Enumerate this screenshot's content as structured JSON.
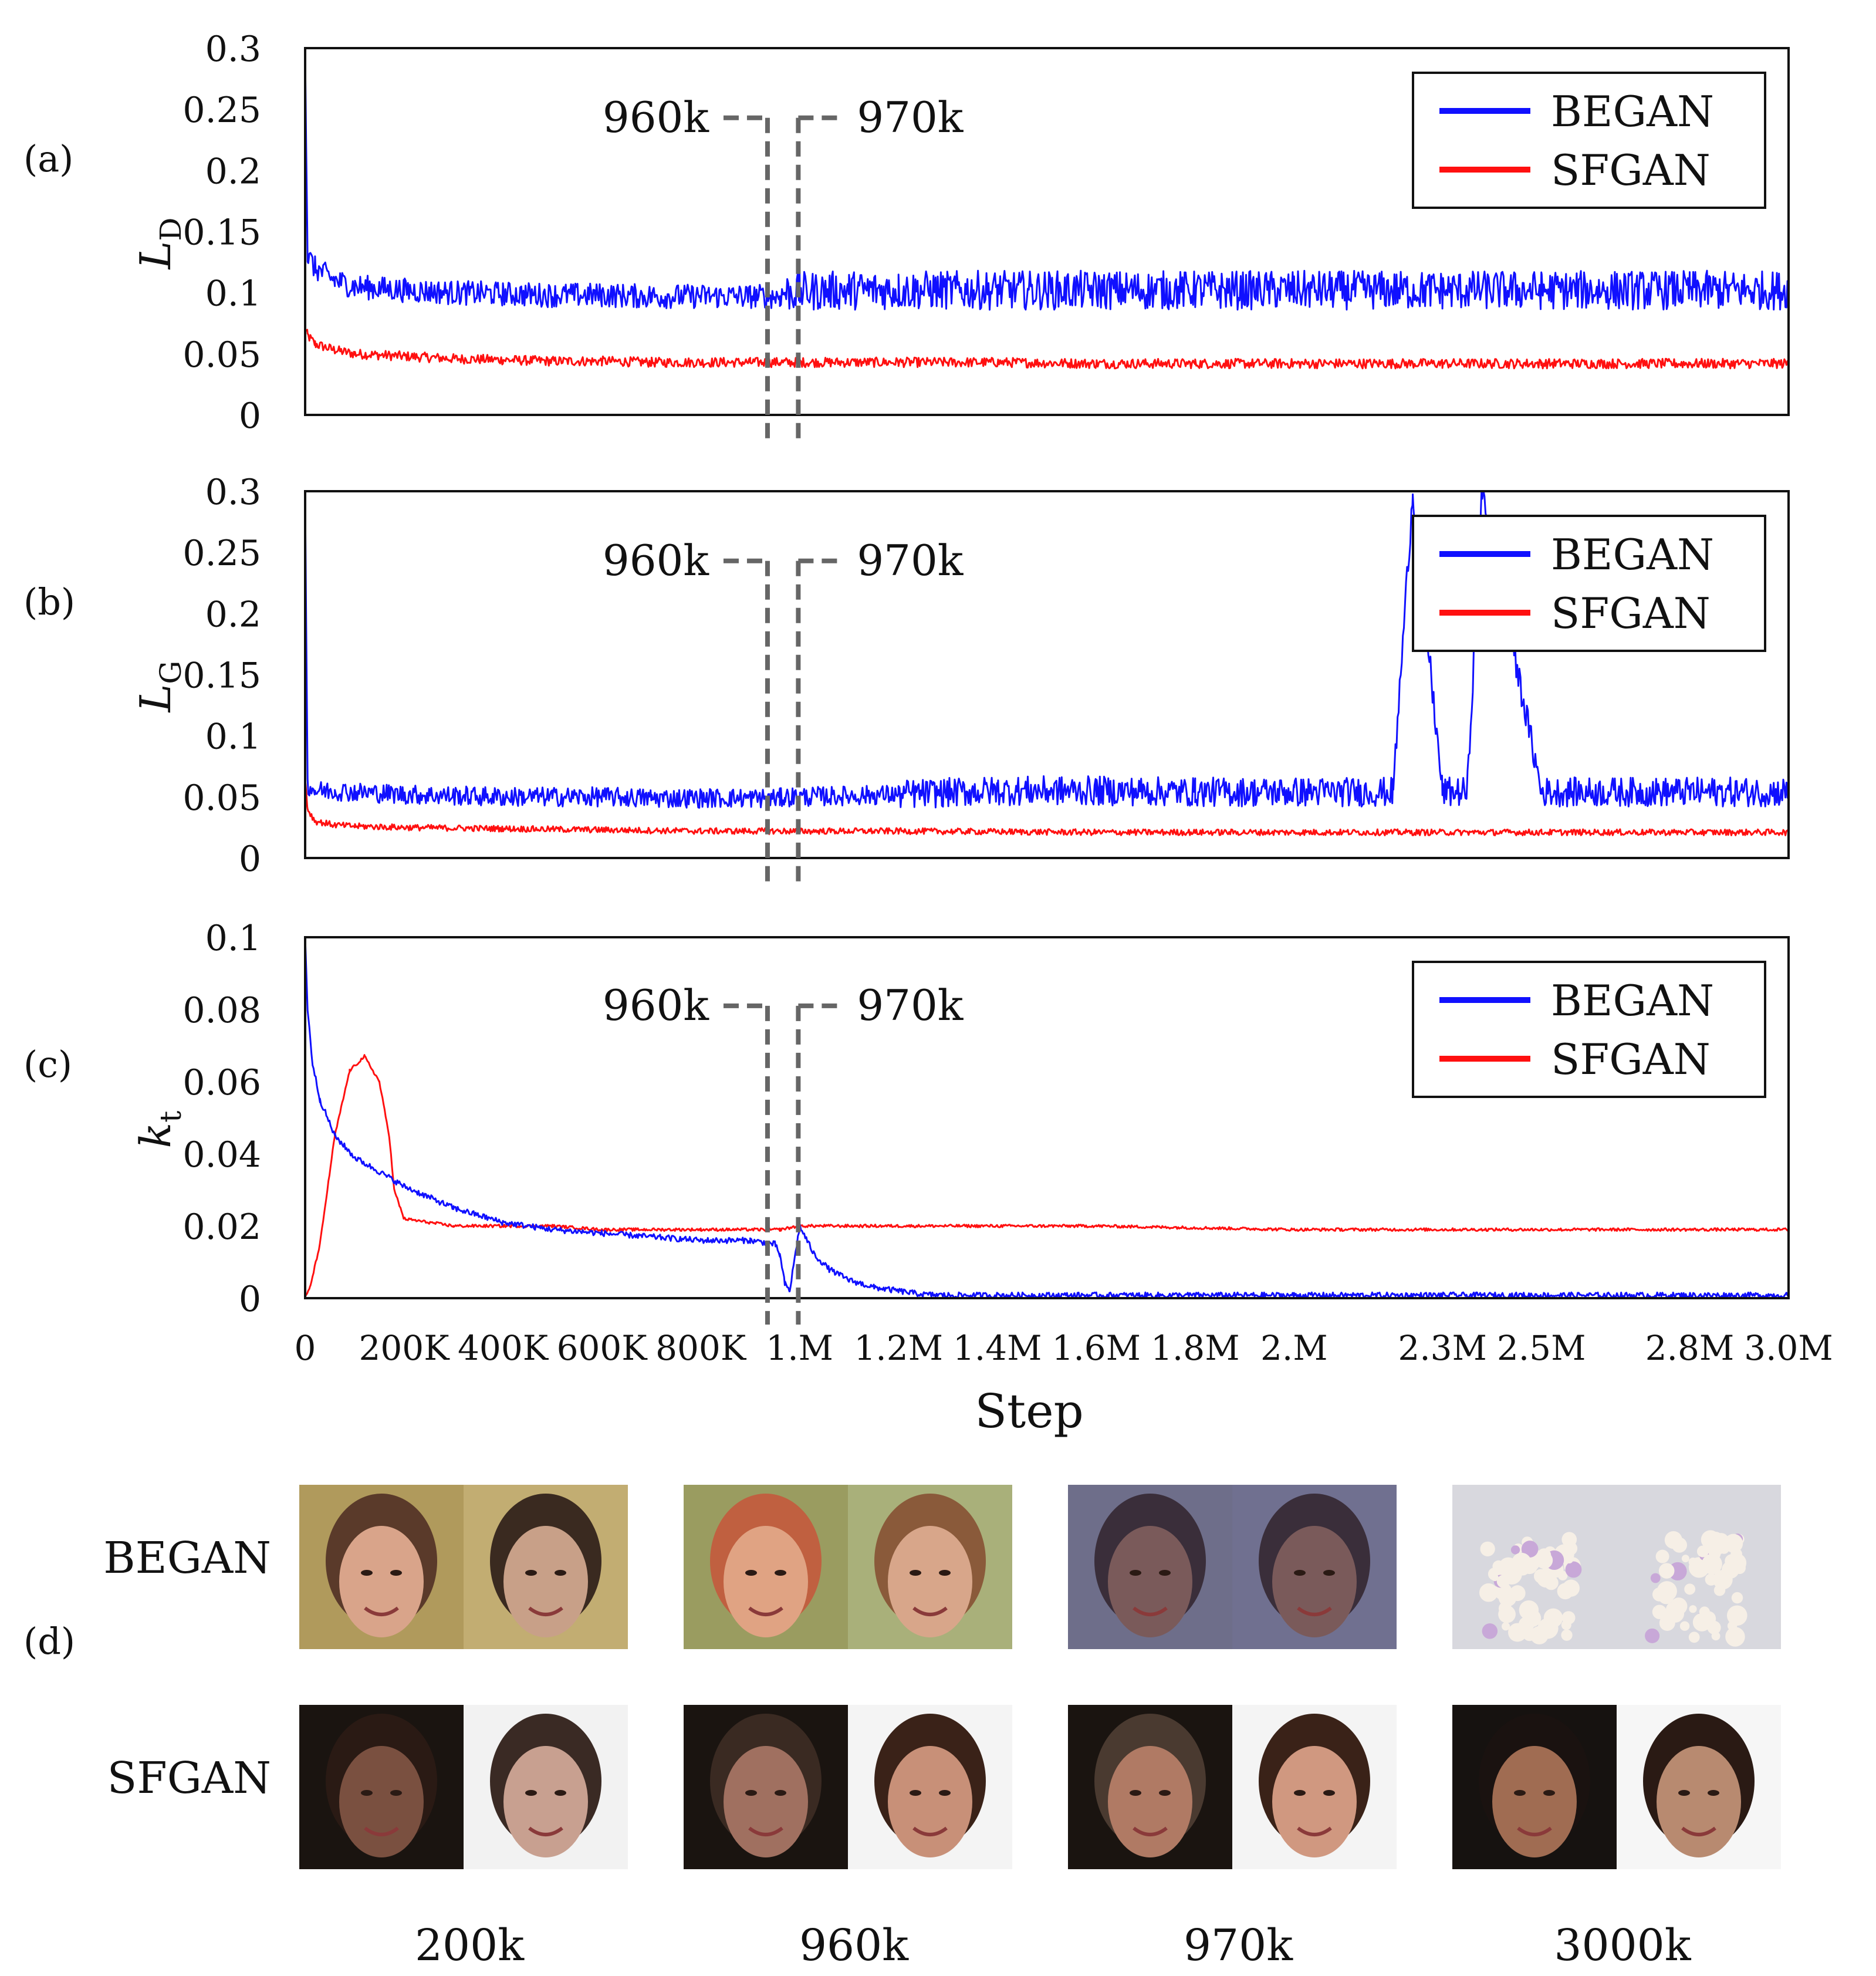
{
  "chart_data": [
    {
      "panel": "(a)",
      "type": "line",
      "ylabel": "L",
      "ylabel_sub": "D",
      "ylim": [
        0,
        0.3
      ],
      "yticks": [
        "0",
        "0.05",
        "0.1",
        "0.15",
        "0.2",
        "0.25",
        "0.3"
      ],
      "xlim": [
        0,
        3000000
      ],
      "grid": false,
      "legend_position": "top-right",
      "markers": [
        {
          "label": "960k",
          "x": 960000
        },
        {
          "label": "970k",
          "x": 970000
        }
      ],
      "series": [
        {
          "name": "BEGAN",
          "color": "#1010ff",
          "x": [
            0,
            5000,
            20000,
            60000,
            100000,
            200000,
            300000,
            400000,
            500000,
            600000,
            700000,
            800000,
            900000,
            960000,
            970000,
            1000000,
            1100000,
            1200000,
            1400000,
            1600000,
            1800000,
            2000000,
            2300000,
            2500000,
            2800000,
            3000000
          ],
          "y": [
            0.3,
            0.13,
            0.12,
            0.11,
            0.105,
            0.102,
            0.1,
            0.099,
            0.098,
            0.098,
            0.097,
            0.097,
            0.097,
            0.097,
            0.1,
            0.101,
            0.102,
            0.102,
            0.102,
            0.102,
            0.102,
            0.102,
            0.102,
            0.102,
            0.102,
            0.102
          ]
        },
        {
          "name": "SFGAN",
          "color": "#ff1010",
          "x": [
            0,
            5000,
            20000,
            60000,
            100000,
            200000,
            300000,
            400000,
            500000,
            600000,
            700000,
            800000,
            900000,
            960000,
            970000,
            1000000,
            1200000,
            1400000,
            1600000,
            1800000,
            2000000,
            2300000,
            2500000,
            2800000,
            3000000
          ],
          "y": [
            0.07,
            0.065,
            0.058,
            0.053,
            0.05,
            0.048,
            0.046,
            0.045,
            0.044,
            0.044,
            0.043,
            0.043,
            0.043,
            0.043,
            0.043,
            0.043,
            0.043,
            0.043,
            0.042,
            0.042,
            0.042,
            0.042,
            0.042,
            0.042,
            0.042
          ]
        }
      ]
    },
    {
      "panel": "(b)",
      "type": "line",
      "ylabel": "L",
      "ylabel_sub": "G",
      "ylim": [
        0,
        0.3
      ],
      "yticks": [
        "0",
        "0.05",
        "0.1",
        "0.15",
        "0.2",
        "0.25",
        "0.3"
      ],
      "xlim": [
        0,
        3000000
      ],
      "grid": false,
      "legend_position": "top-right",
      "markers": [
        {
          "label": "960k",
          "x": 960000
        },
        {
          "label": "970k",
          "x": 970000
        }
      ],
      "series": [
        {
          "name": "BEGAN",
          "color": "#1010ff",
          "x": [
            0,
            5000,
            20000,
            60000,
            100000,
            200000,
            300000,
            400000,
            500000,
            600000,
            700000,
            800000,
            900000,
            960000,
            970000,
            1000000,
            1200000,
            1400000,
            1600000,
            1800000,
            2000000,
            2200000,
            2240000,
            2300000,
            2350000,
            2380000,
            2500000,
            2800000,
            3000000
          ],
          "y": [
            0.3,
            0.06,
            0.055,
            0.055,
            0.054,
            0.052,
            0.051,
            0.05,
            0.05,
            0.05,
            0.049,
            0.049,
            0.049,
            0.049,
            0.05,
            0.05,
            0.052,
            0.055,
            0.055,
            0.054,
            0.054,
            0.054,
            0.3,
            0.054,
            0.054,
            0.3,
            0.054,
            0.054,
            0.054
          ]
        },
        {
          "name": "SFGAN",
          "color": "#ff1010",
          "x": [
            0,
            5000,
            20000,
            60000,
            100000,
            200000,
            400000,
            600000,
            800000,
            960000,
            970000,
            1200000,
            1600000,
            2000000,
            2500000,
            3000000
          ],
          "y": [
            0.065,
            0.04,
            0.03,
            0.027,
            0.026,
            0.025,
            0.024,
            0.023,
            0.022,
            0.022,
            0.022,
            0.022,
            0.021,
            0.021,
            0.021,
            0.021
          ]
        }
      ]
    },
    {
      "panel": "(c)",
      "type": "line",
      "ylabel": "k",
      "ylabel_sub": "t",
      "xlabel": "Step",
      "ylim": [
        0,
        0.1
      ],
      "yticks": [
        "0",
        "0.02",
        "0.04",
        "0.06",
        "0.08",
        "0.1"
      ],
      "xlim": [
        0,
        3000000
      ],
      "xticks": [
        {
          "label": "0",
          "x": 0
        },
        {
          "label": "200K",
          "x": 200000
        },
        {
          "label": "400K",
          "x": 400000
        },
        {
          "label": "600K",
          "x": 600000
        },
        {
          "label": "800K",
          "x": 800000
        },
        {
          "label": "1.M",
          "x": 1000000
        },
        {
          "label": "1.2M",
          "x": 1200000
        },
        {
          "label": "1.4M",
          "x": 1400000
        },
        {
          "label": "1.6M",
          "x": 1600000
        },
        {
          "label": "1.8M",
          "x": 1800000
        },
        {
          "label": "2.M",
          "x": 2000000
        },
        {
          "label": "2.3M",
          "x": 2300000
        },
        {
          "label": "2.5M",
          "x": 2500000
        },
        {
          "label": "2.8M",
          "x": 2800000
        },
        {
          "label": "3.0M",
          "x": 3000000
        }
      ],
      "grid": false,
      "legend_position": "top-right",
      "markers": [
        {
          "label": "960k",
          "x": 960000
        },
        {
          "label": "970k",
          "x": 970000
        }
      ],
      "series": [
        {
          "name": "BEGAN",
          "color": "#1010ff",
          "x": [
            0,
            5000,
            15000,
            30000,
            60000,
            100000,
            150000,
            200000,
            250000,
            300000,
            400000,
            500000,
            600000,
            700000,
            800000,
            900000,
            950000,
            960000,
            970000,
            980000,
            1000000,
            1030000,
            1060000,
            1100000,
            1150000,
            1200000,
            1250000,
            1300000,
            1600000,
            2000000,
            2500000,
            3000000
          ],
          "y": [
            0.1,
            0.08,
            0.065,
            0.055,
            0.045,
            0.039,
            0.035,
            0.031,
            0.028,
            0.025,
            0.021,
            0.019,
            0.018,
            0.017,
            0.016,
            0.016,
            0.015,
            0.012,
            0.004,
            0.002,
            0.02,
            0.012,
            0.008,
            0.005,
            0.003,
            0.002,
            0.001,
            0.0008,
            0.0008,
            0.0008,
            0.0008,
            0.0008
          ]
        },
        {
          "name": "SFGAN",
          "color": "#ff1010",
          "x": [
            0,
            10000,
            30000,
            60000,
            90000,
            120000,
            150000,
            170000,
            180000,
            200000,
            300000,
            400000,
            500000,
            600000,
            800000,
            960000,
            1000000,
            1200000,
            1600000,
            2000000,
            2500000,
            3000000
          ],
          "y": [
            0.0,
            0.003,
            0.015,
            0.045,
            0.063,
            0.067,
            0.06,
            0.045,
            0.03,
            0.022,
            0.02,
            0.02,
            0.02,
            0.019,
            0.019,
            0.019,
            0.02,
            0.02,
            0.02,
            0.019,
            0.019,
            0.019
          ]
        }
      ]
    }
  ],
  "panel_d": {
    "label": "(d)",
    "rows": [
      "BEGAN",
      "SFGAN"
    ],
    "columns": [
      "200k",
      "960k",
      "970k",
      "3000k"
    ]
  }
}
